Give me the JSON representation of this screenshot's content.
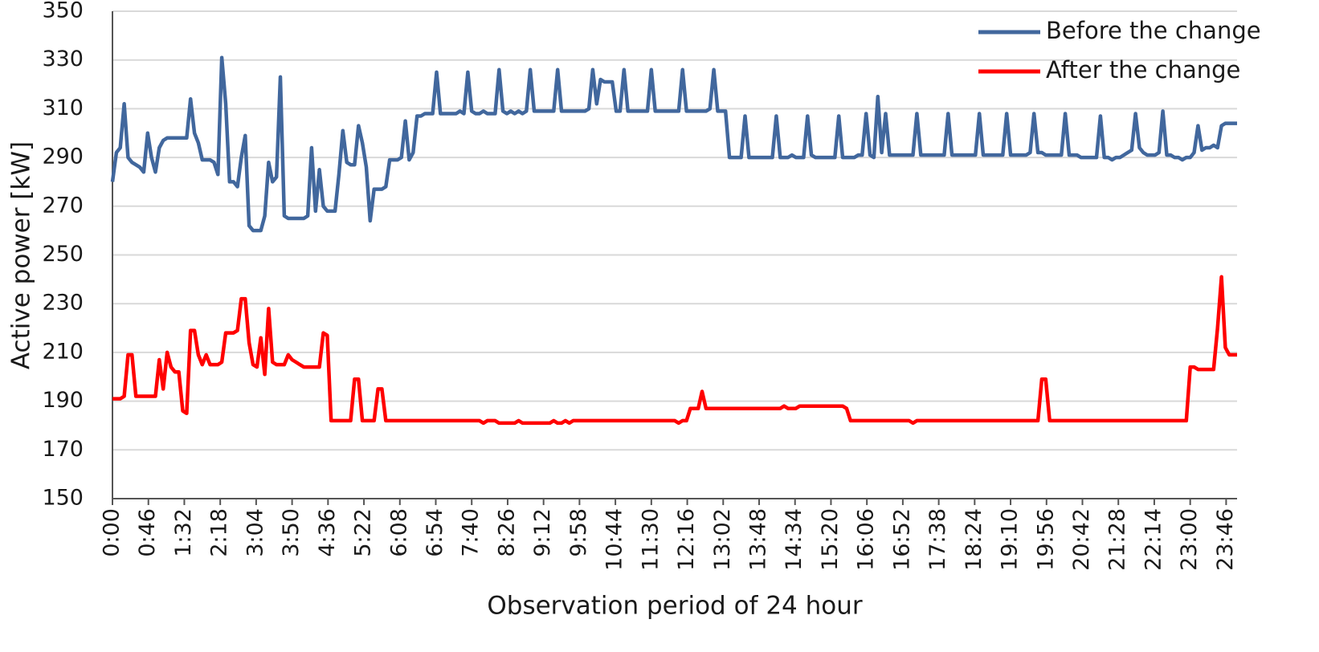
{
  "chart_data": {
    "type": "line",
    "x_label": "Observation period of 24 hour",
    "y_label": "Active power [kW]",
    "x": [
      0,
      5,
      10,
      15,
      20,
      25,
      30,
      35,
      40,
      45,
      50,
      55,
      60,
      65,
      70,
      75,
      80,
      85,
      90,
      95,
      100,
      105,
      110,
      115,
      120,
      125,
      130,
      135,
      140,
      145,
      150,
      155,
      160,
      165,
      170,
      175,
      180,
      185,
      190,
      195,
      200,
      205,
      210,
      215,
      220,
      225,
      230,
      235,
      240,
      245,
      250,
      255,
      260,
      265,
      270,
      275,
      280,
      285,
      290,
      295,
      300,
      305,
      310,
      315,
      320,
      325,
      330,
      335,
      340,
      345,
      350,
      355,
      360,
      365,
      370,
      375,
      380,
      385,
      390,
      395,
      400,
      405,
      410,
      415,
      420,
      425,
      430,
      435,
      440,
      445,
      450,
      455,
      460,
      465,
      470,
      475,
      480,
      485,
      490,
      495,
      500,
      505,
      510,
      515,
      520,
      525,
      530,
      535,
      540,
      545,
      550,
      555,
      560,
      565,
      570,
      575,
      580,
      585,
      590,
      595,
      600,
      605,
      610,
      615,
      620,
      625,
      630,
      635,
      640,
      645,
      650,
      655,
      660,
      665,
      670,
      675,
      680,
      685,
      690,
      695,
      700,
      705,
      710,
      715,
      720,
      725,
      730,
      735,
      740,
      745,
      750,
      755,
      760,
      765,
      770,
      775,
      780,
      785,
      790,
      795,
      800,
      805,
      810,
      815,
      820,
      825,
      830,
      835,
      840,
      845,
      850,
      855,
      860,
      865,
      870,
      875,
      880,
      885,
      890,
      895,
      900,
      905,
      910,
      915,
      920,
      925,
      930,
      935,
      940,
      945,
      950,
      955,
      960,
      965,
      970,
      975,
      980,
      985,
      990,
      995,
      1000,
      1005,
      1010,
      1015,
      1020,
      1025,
      1030,
      1035,
      1040,
      1045,
      1050,
      1055,
      1060,
      1065,
      1070,
      1075,
      1080,
      1085,
      1090,
      1095,
      1100,
      1105,
      1110,
      1115,
      1120,
      1125,
      1130,
      1135,
      1140,
      1145,
      1150,
      1155,
      1160,
      1165,
      1170,
      1175,
      1180,
      1185,
      1190,
      1195,
      1200,
      1205,
      1210,
      1215,
      1220,
      1225,
      1230,
      1235,
      1240,
      1245,
      1250,
      1255,
      1260,
      1265,
      1270,
      1275,
      1280,
      1285,
      1290,
      1295,
      1300,
      1305,
      1310,
      1315,
      1320,
      1325,
      1330,
      1335,
      1340,
      1345,
      1350,
      1355,
      1360,
      1365,
      1370,
      1375,
      1380,
      1385,
      1390,
      1395,
      1400,
      1405,
      1410,
      1415,
      1420,
      1425,
      1430,
      1435,
      1440
    ],
    "series": [
      {
        "name": "Before the change",
        "color": "#41679d",
        "values": [
          280,
          292,
          294,
          312,
          290,
          288,
          287,
          286,
          284,
          300,
          290,
          284,
          294,
          297,
          298,
          298,
          298,
          298,
          298,
          298,
          314,
          300,
          296,
          289,
          289,
          289,
          288,
          283,
          331,
          312,
          280,
          280,
          278,
          290,
          299,
          262,
          260,
          260,
          260,
          266,
          288,
          280,
          282,
          323,
          266,
          265,
          265,
          265,
          265,
          265,
          266,
          294,
          268,
          285,
          270,
          268,
          268,
          268,
          283,
          301,
          288,
          287,
          287,
          303,
          296,
          286,
          264,
          277,
          277,
          277,
          278,
          289,
          289,
          289,
          290,
          305,
          289,
          292,
          307,
          307,
          308,
          308,
          308,
          325,
          308,
          308,
          308,
          308,
          308,
          309,
          308,
          325,
          309,
          308,
          308,
          309,
          308,
          308,
          308,
          326,
          309,
          308,
          309,
          308,
          309,
          308,
          309,
          326,
          309,
          309,
          309,
          309,
          309,
          309,
          326,
          309,
          309,
          309,
          309,
          309,
          309,
          309,
          310,
          326,
          312,
          322,
          321,
          321,
          321,
          309,
          309,
          326,
          309,
          309,
          309,
          309,
          309,
          309,
          326,
          309,
          309,
          309,
          309,
          309,
          309,
          309,
          326,
          309,
          309,
          309,
          309,
          309,
          309,
          310,
          326,
          309,
          309,
          309,
          290,
          290,
          290,
          290,
          307,
          290,
          290,
          290,
          290,
          290,
          290,
          290,
          307,
          290,
          290,
          290,
          291,
          290,
          290,
          290,
          307,
          291,
          290,
          290,
          290,
          290,
          290,
          290,
          307,
          290,
          290,
          290,
          290,
          291,
          291,
          308,
          291,
          290,
          315,
          292,
          308,
          291,
          291,
          291,
          291,
          291,
          291,
          291,
          308,
          291,
          291,
          291,
          291,
          291,
          291,
          291,
          308,
          291,
          291,
          291,
          291,
          291,
          291,
          291,
          308,
          291,
          291,
          291,
          291,
          291,
          291,
          308,
          291,
          291,
          291,
          291,
          291,
          292,
          308,
          292,
          292,
          291,
          291,
          291,
          291,
          291,
          308,
          291,
          291,
          291,
          290,
          290,
          290,
          290,
          290,
          307,
          290,
          290,
          289,
          290,
          290,
          291,
          292,
          293,
          308,
          294,
          292,
          291,
          291,
          291,
          292,
          309,
          291,
          291,
          290,
          290,
          289,
          290,
          290,
          292,
          303,
          293,
          294,
          294,
          295,
          294,
          303,
          304,
          304,
          304,
          304
        ]
      },
      {
        "name": "After the change",
        "color": "#ff0000",
        "values": [
          191,
          191,
          191,
          192,
          209,
          209,
          192,
          192,
          192,
          192,
          192,
          192,
          207,
          195,
          210,
          204,
          202,
          202,
          186,
          185,
          219,
          219,
          209,
          205,
          209,
          205,
          205,
          205,
          206,
          218,
          218,
          218,
          219,
          232,
          232,
          214,
          205,
          204,
          216,
          201,
          228,
          206,
          205,
          205,
          205,
          209,
          207,
          206,
          205,
          204,
          204,
          204,
          204,
          204,
          218,
          217,
          182,
          182,
          182,
          182,
          182,
          182,
          199,
          199,
          182,
          182,
          182,
          182,
          195,
          195,
          182,
          182,
          182,
          182,
          182,
          182,
          182,
          182,
          182,
          182,
          182,
          182,
          182,
          182,
          182,
          182,
          182,
          182,
          182,
          182,
          182,
          182,
          182,
          182,
          182,
          181,
          182,
          182,
          182,
          181,
          181,
          181,
          181,
          181,
          182,
          181,
          181,
          181,
          181,
          181,
          181,
          181,
          181,
          182,
          181,
          181,
          182,
          181,
          182,
          182,
          182,
          182,
          182,
          182,
          182,
          182,
          182,
          182,
          182,
          182,
          182,
          182,
          182,
          182,
          182,
          182,
          182,
          182,
          182,
          182,
          182,
          182,
          182,
          182,
          182,
          181,
          182,
          182,
          187,
          187,
          187,
          194,
          187,
          187,
          187,
          187,
          187,
          187,
          187,
          187,
          187,
          187,
          187,
          187,
          187,
          187,
          187,
          187,
          187,
          187,
          187,
          187,
          188,
          187,
          187,
          187,
          188,
          188,
          188,
          188,
          188,
          188,
          188,
          188,
          188,
          188,
          188,
          188,
          187,
          182,
          182,
          182,
          182,
          182,
          182,
          182,
          182,
          182,
          182,
          182,
          182,
          182,
          182,
          182,
          182,
          181,
          182,
          182,
          182,
          182,
          182,
          182,
          182,
          182,
          182,
          182,
          182,
          182,
          182,
          182,
          182,
          182,
          182,
          182,
          182,
          182,
          182,
          182,
          182,
          182,
          182,
          182,
          182,
          182,
          182,
          182,
          182,
          182,
          199,
          199,
          182,
          182,
          182,
          182,
          182,
          182,
          182,
          182,
          182,
          182,
          182,
          182,
          182,
          182,
          182,
          182,
          182,
          182,
          182,
          182,
          182,
          182,
          182,
          182,
          182,
          182,
          182,
          182,
          182,
          182,
          182,
          182,
          182,
          182,
          182,
          182,
          204,
          204,
          203,
          203,
          203,
          203,
          203,
          220,
          241,
          212,
          209,
          209,
          209
        ]
      }
    ],
    "xlim": [
      0,
      1440
    ],
    "xticks": [
      {
        "value": 0,
        "label": "0:00"
      },
      {
        "value": 46,
        "label": "0:46"
      },
      {
        "value": 92,
        "label": "1:32"
      },
      {
        "value": 138,
        "label": "2:18"
      },
      {
        "value": 184,
        "label": "3:04"
      },
      {
        "value": 230,
        "label": "3:50"
      },
      {
        "value": 276,
        "label": "4:36"
      },
      {
        "value": 322,
        "label": "5:22"
      },
      {
        "value": 368,
        "label": "6:08"
      },
      {
        "value": 414,
        "label": "6:54"
      },
      {
        "value": 460,
        "label": "7:40"
      },
      {
        "value": 506,
        "label": "8:26"
      },
      {
        "value": 552,
        "label": "9:12"
      },
      {
        "value": 598,
        "label": "9:58"
      },
      {
        "value": 644,
        "label": "10:44"
      },
      {
        "value": 690,
        "label": "11:30"
      },
      {
        "value": 736,
        "label": "12:16"
      },
      {
        "value": 782,
        "label": "13:02"
      },
      {
        "value": 828,
        "label": "13:48"
      },
      {
        "value": 874,
        "label": "14:34"
      },
      {
        "value": 920,
        "label": "15:20"
      },
      {
        "value": 966,
        "label": "16:06"
      },
      {
        "value": 1012,
        "label": "16:52"
      },
      {
        "value": 1058,
        "label": "17:38"
      },
      {
        "value": 1104,
        "label": "18:24"
      },
      {
        "value": 1150,
        "label": "19:10"
      },
      {
        "value": 1196,
        "label": "19:56"
      },
      {
        "value": 1242,
        "label": "20:42"
      },
      {
        "value": 1288,
        "label": "21:28"
      },
      {
        "value": 1334,
        "label": "22:14"
      },
      {
        "value": 1380,
        "label": "23:00"
      },
      {
        "value": 1426,
        "label": "23:46"
      }
    ],
    "ylim": [
      150,
      350
    ],
    "yticks": [
      150,
      170,
      190,
      210,
      230,
      250,
      270,
      290,
      310,
      330,
      350
    ],
    "grid": true,
    "legend": "top-right"
  }
}
